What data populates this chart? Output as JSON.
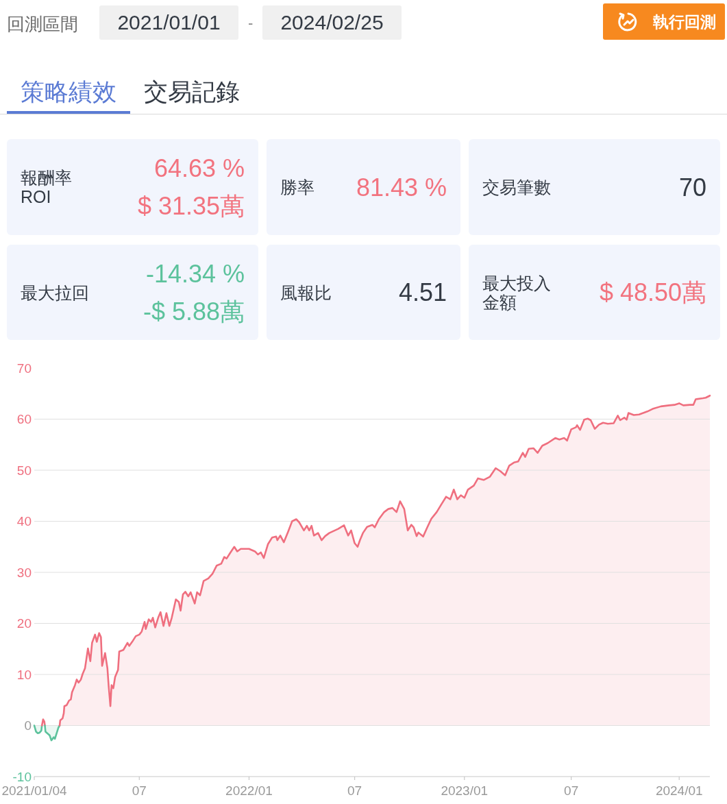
{
  "chart_data": [
    {
      "type": "other",
      "annotations": [
        "回測區間",
        "2021/01/01",
        "-",
        "2024/02/25",
        "執行回測",
        "策略績效",
        "交易記錄"
      ]
    },
    {
      "type": "other",
      "title": "報酬率",
      "subtitle": "ROI",
      "annotations": [
        "64.63 %",
        "$ 31.35萬"
      ],
      "color": "#f2737f"
    },
    {
      "type": "other",
      "title": "勝率",
      "annotations": [
        "81.43 %"
      ],
      "color": "#f2737f"
    },
    {
      "type": "other",
      "title": "交易筆數",
      "annotations": [
        "70"
      ],
      "color": "#333a44"
    },
    {
      "type": "other",
      "title": "最大拉回",
      "annotations": [
        "-14.34 %",
        "-$ 5.88萬"
      ],
      "color": "#5cc29c"
    },
    {
      "type": "other",
      "title": "風報比",
      "annotations": [
        "4.51"
      ],
      "color": "#333a44"
    },
    {
      "type": "other",
      "title": "最大投入金額",
      "annotations": [
        "$ 48.50萬"
      ],
      "color": "#f2737f"
    },
    {
      "type": "area",
      "grid": "y",
      "xlim": [
        "2021-01-04",
        "2024-02-23"
      ],
      "ylim": [
        -10,
        70
      ],
      "xticks": [
        {
          "value": "2021-01-04",
          "label": "2021/01/04"
        },
        {
          "value": "2021-07-01",
          "label": "07"
        },
        {
          "value": "2022-01-03",
          "label": "2022/01"
        },
        {
          "value": "2022-07-01",
          "label": "07"
        },
        {
          "value": "2023-01-03",
          "label": "2023/01"
        },
        {
          "value": "2023-07-03",
          "label": "07"
        },
        {
          "value": "2024-01-02",
          "label": "2024/01"
        }
      ],
      "yticks": [
        -10,
        0,
        10,
        20,
        30,
        40,
        50,
        60,
        70
      ],
      "series": [
        {
          "color": "#5cc29c",
          "x": [
            "2021-01-04",
            "2021-01-07",
            "2021-01-10",
            "2021-01-13",
            "2021-01-16",
            "2021-01-17"
          ],
          "values": [
            0,
            -1.2,
            -1.5,
            -1.4,
            -1.0,
            0
          ]
        },
        {
          "type": "line",
          "color": "#ef6f7f",
          "x": [
            "2021-01-17",
            "2021-01-19",
            "2021-01-21",
            "2021-01-22"
          ],
          "values": [
            0,
            1.2,
            0.8,
            0
          ]
        },
        {
          "color": "#5cc29c",
          "x": [
            "2021-01-22",
            "2021-01-23",
            "2021-01-26",
            "2021-01-30",
            "2021-02-02",
            "2021-02-06",
            "2021-02-08",
            "2021-02-11",
            "2021-02-14",
            "2021-02-16"
          ],
          "values": [
            0,
            -1.2,
            -1.5,
            -1.9,
            -2.9,
            -2.3,
            -2.6,
            -1.5,
            -0.4,
            0
          ]
        },
        {
          "color": "#ef6f7f",
          "x": [
            "2021-02-16",
            "2021-02-17",
            "2021-02-21",
            "2021-02-23",
            "2021-02-24",
            "2021-02-28",
            "2021-03-04",
            "2021-03-07",
            "2021-03-09",
            "2021-03-14",
            "2021-03-17",
            "2021-03-20",
            "2021-03-24",
            "2021-03-27",
            "2021-03-31",
            "2021-04-05",
            "2021-04-09",
            "2021-04-12",
            "2021-04-17",
            "2021-04-20",
            "2021-04-22",
            "2021-04-24",
            "2021-04-27",
            "2021-04-29",
            "2021-05-04",
            "2021-05-08",
            "2021-05-10",
            "2021-05-13",
            "2021-05-15",
            "2021-05-18",
            "2021-05-21",
            "2021-05-26",
            "2021-05-28",
            "2021-06-04",
            "2021-06-11",
            "2021-06-14",
            "2021-06-19",
            "2021-06-25",
            "2021-07-01",
            "2021-07-05",
            "2021-07-10",
            "2021-07-12",
            "2021-07-17",
            "2021-07-21",
            "2021-07-24",
            "2021-07-28",
            "2021-08-02",
            "2021-08-06",
            "2021-08-11",
            "2021-08-16",
            "2021-08-21",
            "2021-08-25",
            "2021-09-01",
            "2021-09-06",
            "2021-09-09",
            "2021-09-13",
            "2021-09-17",
            "2021-09-22",
            "2021-09-26",
            "2021-10-03",
            "2021-10-07",
            "2021-10-12",
            "2021-10-18",
            "2021-10-26",
            "2021-11-02",
            "2021-11-09",
            "2021-11-17",
            "2021-11-22",
            "2021-11-26",
            "2021-12-02",
            "2021-12-09",
            "2021-12-14",
            "2021-12-20",
            "2022-01-03",
            "2022-01-13",
            "2022-01-18",
            "2022-01-23",
            "2022-01-28",
            "2022-02-04",
            "2022-02-11",
            "2022-02-18",
            "2022-02-20",
            "2022-02-25",
            "2022-03-03",
            "2022-03-10",
            "2022-03-17",
            "2022-03-24",
            "2022-03-29",
            "2022-04-06",
            "2022-04-11",
            "2022-04-15",
            "2022-04-19",
            "2022-04-23",
            "2022-04-30",
            "2022-05-06",
            "2022-05-12",
            "2022-05-19",
            "2022-06-03",
            "2022-06-13",
            "2022-06-20",
            "2022-06-25",
            "2022-07-01",
            "2022-07-06",
            "2022-07-10",
            "2022-07-15",
            "2022-07-22",
            "2022-07-31",
            "2022-08-04",
            "2022-08-11",
            "2022-08-20",
            "2022-08-27",
            "2022-09-03",
            "2022-09-10",
            "2022-09-16",
            "2022-09-23",
            "2022-09-29",
            "2022-10-05",
            "2022-10-09",
            "2022-10-14",
            "2022-10-17",
            "2022-10-25",
            "2022-11-01",
            "2022-11-08",
            "2022-11-17",
            "2022-11-26",
            "2022-12-03",
            "2022-12-10",
            "2022-12-16",
            "2022-12-22",
            "2022-12-28",
            "2023-01-03",
            "2023-01-09",
            "2023-01-19",
            "2023-01-26",
            "2023-02-05",
            "2023-02-15",
            "2023-02-25",
            "2023-03-05",
            "2023-03-13",
            "2023-03-20",
            "2023-03-28",
            "2023-04-04",
            "2023-04-12",
            "2023-04-16",
            "2023-04-22",
            "2023-04-30",
            "2023-05-07",
            "2023-05-15",
            "2023-05-24",
            "2023-06-06",
            "2023-06-13",
            "2023-06-21",
            "2023-06-26",
            "2023-07-03",
            "2023-07-11",
            "2023-07-13",
            "2023-07-18",
            "2023-07-25",
            "2023-07-31",
            "2023-08-05",
            "2023-08-12",
            "2023-08-19",
            "2023-08-26",
            "2023-09-03",
            "2023-09-13",
            "2023-09-20",
            "2023-09-24",
            "2023-10-01",
            "2023-10-05",
            "2023-10-08",
            "2023-10-17",
            "2023-10-26",
            "2023-11-02",
            "2023-11-09",
            "2023-11-18",
            "2023-12-02",
            "2023-12-16",
            "2023-12-25",
            "2024-01-02",
            "2024-01-09",
            "2024-01-20",
            "2024-01-26",
            "2024-01-30",
            "2024-02-11",
            "2024-02-16",
            "2024-02-23"
          ],
          "values": [
            0,
            1.0,
            1.4,
            2.4,
            3.8,
            4.0,
            4.9,
            5.1,
            6.5,
            7.9,
            9.0,
            8.4,
            9.0,
            10.1,
            11.2,
            15.1,
            12.6,
            16.2,
            17.8,
            16.4,
            17.3,
            18.1,
            17.3,
            11.7,
            14.2,
            11.2,
            7.9,
            3.8,
            7.9,
            7.3,
            9.5,
            10.9,
            14.5,
            14.8,
            16.2,
            15.6,
            16.4,
            17.5,
            17.8,
            18.4,
            20.3,
            18.9,
            20.8,
            20.3,
            21.1,
            19.2,
            21.1,
            22.2,
            19.5,
            22.0,
            19.5,
            21.1,
            24.7,
            24.2,
            22.5,
            25.7,
            26.2,
            25.3,
            26.1,
            23.9,
            26.1,
            25.5,
            28.3,
            28.8,
            29.7,
            31.3,
            31.7,
            33.0,
            32.7,
            33.8,
            35.0,
            34.1,
            34.6,
            34.6,
            34.1,
            33.5,
            33.9,
            32.8,
            35.5,
            36.8,
            37.0,
            36.3,
            37.2,
            35.9,
            37.9,
            40.0,
            40.4,
            39.8,
            38.2,
            39.1,
            38.2,
            39.1,
            37.2,
            37.7,
            36.3,
            37.1,
            37.7,
            38.5,
            39.2,
            37.2,
            38.2,
            35.7,
            35.0,
            36.3,
            37.7,
            38.9,
            39.3,
            38.8,
            40.4,
            41.8,
            42.4,
            42.6,
            41.8,
            43.9,
            42.4,
            38.2,
            39.3,
            38.8,
            37.1,
            37.8,
            37.0,
            38.8,
            40.5,
            41.8,
            43.5,
            44.8,
            44.3,
            46.2,
            44.3,
            45.1,
            44.6,
            46.2,
            47.0,
            48.4,
            48.1,
            48.7,
            50.4,
            49.8,
            49.0,
            50.9,
            51.5,
            51.7,
            53.4,
            52.6,
            54.2,
            54.3,
            53.4,
            54.8,
            55.3,
            56.3,
            56.0,
            56.3,
            55.8,
            58.0,
            58.4,
            58.8,
            57.9,
            59.9,
            60.1,
            59.8,
            58.1,
            58.9,
            59.3,
            59.1,
            59.2,
            60.7,
            59.8,
            60.3,
            59.9,
            61.2,
            60.8,
            60.9,
            61.2,
            61.5,
            62.0,
            62.5,
            62.7,
            62.8,
            63.1,
            62.7,
            62.8,
            62.8,
            63.9,
            64.1,
            64.2,
            64.6
          ]
        }
      ]
    }
  ]
}
